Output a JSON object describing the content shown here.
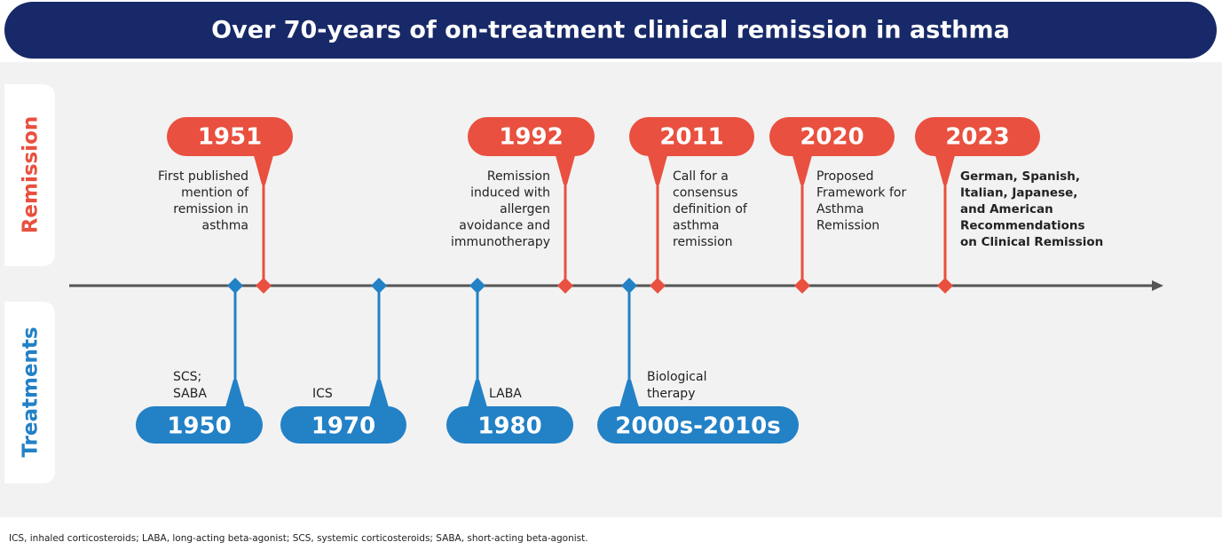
{
  "header": {
    "title": "Over 70-years of on-treatment clinical remission in asthma"
  },
  "tabs": {
    "remission": "Remission",
    "treatments": "Treatments"
  },
  "remission_events": [
    {
      "year": "1951",
      "lines": [
        "First published",
        "mention of",
        "remission in",
        "asthma"
      ]
    },
    {
      "year": "1992",
      "lines": [
        "Remission",
        "induced with",
        "allergen",
        "avoidance and",
        "immunotherapy"
      ]
    },
    {
      "year": "2011",
      "lines": [
        "Call for a",
        "consensus",
        "definition of",
        "asthma",
        "remission"
      ]
    },
    {
      "year": "2020",
      "lines": [
        "Proposed",
        "Framework for",
        "Asthma",
        "Remission"
      ]
    },
    {
      "year": "2023",
      "lines": [
        "German, Spanish,",
        "Italian, Japanese,",
        "and  American",
        "Recommendations",
        "on Clinical Remission"
      ]
    }
  ],
  "treatment_events": [
    {
      "year": "1950",
      "lines": [
        "SCS;",
        "SABA"
      ]
    },
    {
      "year": "1970",
      "lines": [
        "ICS"
      ]
    },
    {
      "year": "1980",
      "lines": [
        "LABA"
      ]
    },
    {
      "year": "2000s-2010s",
      "lines": [
        "Biological",
        "therapy"
      ]
    }
  ],
  "footnote": "ICS, inhaled corticosteroids; LABA, long-acting beta-agonist; SCS, systemic corticosteroids; SABA, short-acting beta-agonist."
}
